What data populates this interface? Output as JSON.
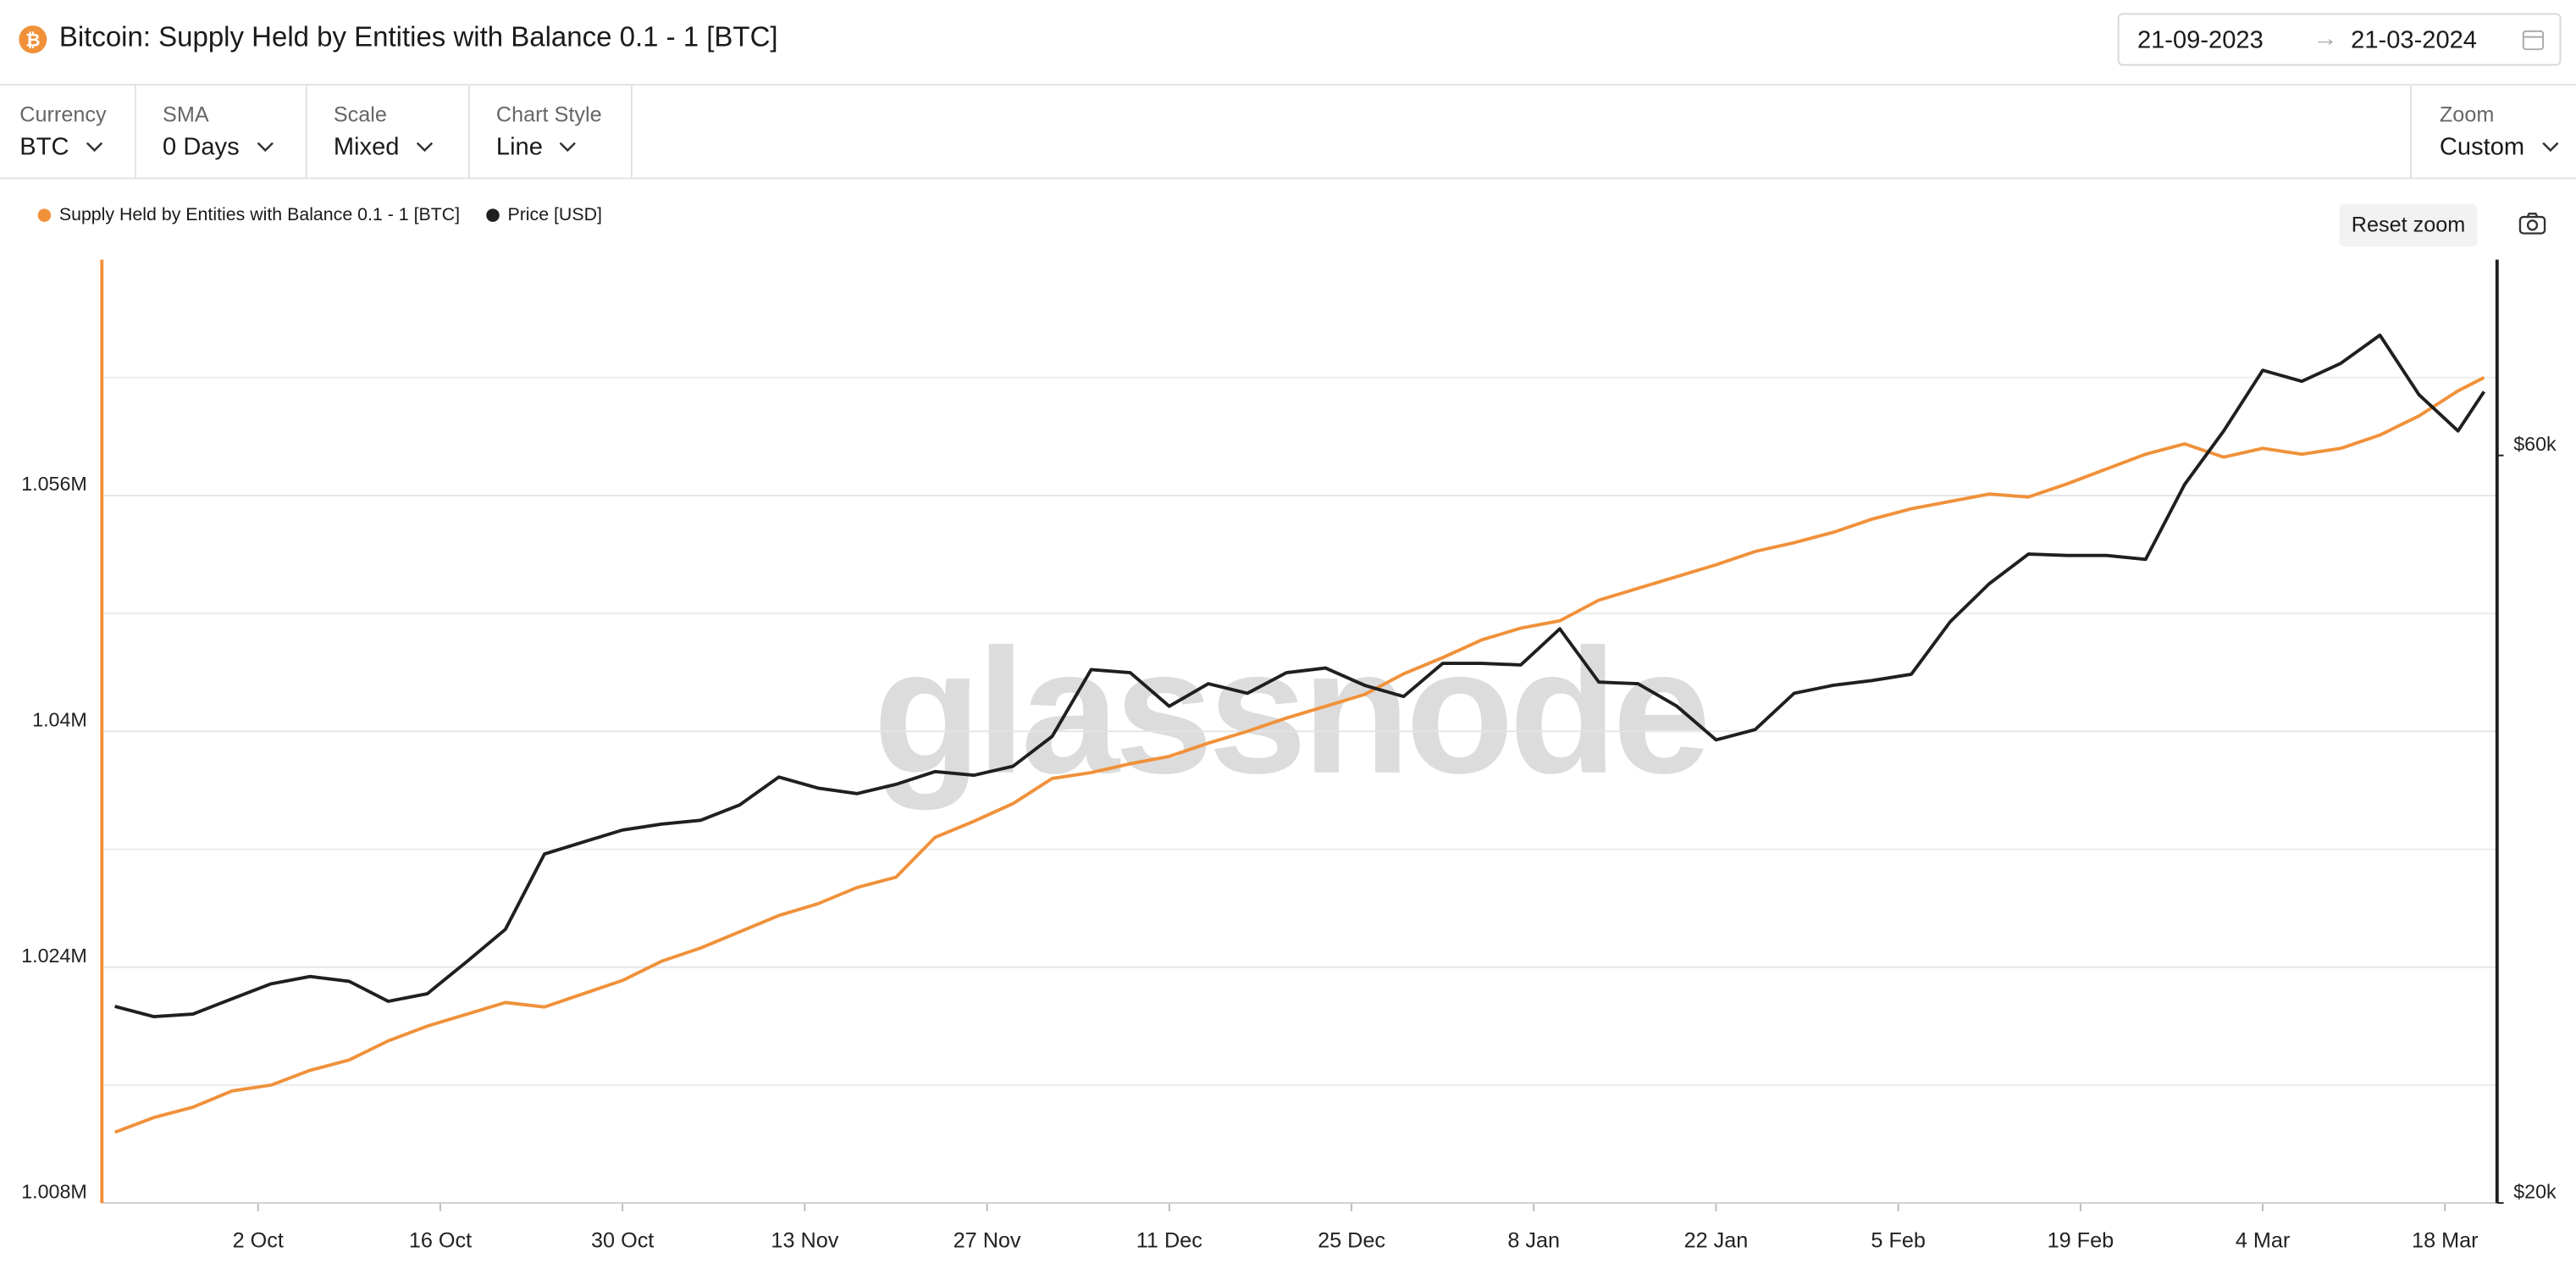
{
  "header": {
    "title": "Bitcoin: Supply Held by Entities with Balance 0.1 - 1 [BTC]",
    "date_from": "21-09-2023",
    "date_to": "21-03-2024"
  },
  "controls": [
    {
      "label": "Currency",
      "value": "BTC"
    },
    {
      "label": "SMA",
      "value": "0 Days"
    },
    {
      "label": "Scale",
      "value": "Mixed"
    },
    {
      "label": "Chart Style",
      "value": "Line"
    }
  ],
  "zoom": {
    "label": "Zoom",
    "value": "Custom"
  },
  "reset_zoom": "Reset zoom",
  "watermark": "glassnode",
  "chart_data": {
    "type": "line",
    "x": [
      "2023-09-21",
      "2023-09-24",
      "2023-09-27",
      "2023-09-30",
      "2023-10-03",
      "2023-10-06",
      "2023-10-09",
      "2023-10-12",
      "2023-10-15",
      "2023-10-18",
      "2023-10-21",
      "2023-10-24",
      "2023-10-27",
      "2023-10-30",
      "2023-11-02",
      "2023-11-05",
      "2023-11-08",
      "2023-11-11",
      "2023-11-14",
      "2023-11-17",
      "2023-11-20",
      "2023-11-23",
      "2023-11-26",
      "2023-11-29",
      "2023-12-02",
      "2023-12-05",
      "2023-12-08",
      "2023-12-11",
      "2023-12-14",
      "2023-12-17",
      "2023-12-20",
      "2023-12-23",
      "2023-12-26",
      "2023-12-29",
      "2024-01-01",
      "2024-01-04",
      "2024-01-07",
      "2024-01-10",
      "2024-01-13",
      "2024-01-16",
      "2024-01-19",
      "2024-01-22",
      "2024-01-25",
      "2024-01-28",
      "2024-01-31",
      "2024-02-03",
      "2024-02-06",
      "2024-02-09",
      "2024-02-12",
      "2024-02-15",
      "2024-02-18",
      "2024-02-21",
      "2024-02-24",
      "2024-02-27",
      "2024-03-01",
      "2024-03-04",
      "2024-03-07",
      "2024-03-10",
      "2024-03-13",
      "2024-03-16",
      "2024-03-19",
      "2024-03-21"
    ],
    "series": [
      {
        "name": "Supply Held by Entities with Balance 0.1 - 1 [BTC]",
        "color": "#f0913a",
        "axis": "y",
        "values": [
          1012800,
          1013800,
          1014500,
          1015600,
          1016000,
          1017000,
          1017700,
          1019000,
          1020000,
          1020800,
          1021600,
          1021300,
          1022200,
          1023100,
          1024400,
          1025300,
          1026400,
          1027500,
          1028300,
          1029400,
          1030100,
          1032800,
          1033900,
          1035100,
          1036800,
          1037200,
          1037800,
          1038300,
          1039200,
          1040000,
          1040900,
          1041700,
          1042500,
          1043900,
          1045000,
          1046200,
          1047000,
          1047500,
          1048900,
          1049700,
          1050500,
          1051300,
          1052200,
          1052800,
          1053500,
          1054400,
          1055100,
          1055600,
          1056100,
          1055900,
          1056800,
          1057800,
          1058800,
          1059500,
          1058600,
          1059200,
          1058800,
          1059200,
          1060100,
          1061400,
          1063100,
          1064000
        ]
      },
      {
        "name": "Price [USD]",
        "color": "#1f1f1f",
        "axis": "y2",
        "values": [
          26700,
          26300,
          26400,
          27000,
          27600,
          27900,
          27700,
          26900,
          27200,
          28500,
          29900,
          33400,
          34000,
          34600,
          34900,
          35100,
          35900,
          37400,
          36800,
          36500,
          37000,
          37700,
          37500,
          38000,
          39700,
          43800,
          43600,
          41500,
          42900,
          42300,
          43600,
          43900,
          42800,
          42100,
          44200,
          44200,
          44100,
          46500,
          43000,
          42900,
          41500,
          39500,
          40100,
          42300,
          42800,
          43100,
          43500,
          47000,
          49700,
          51900,
          51800,
          51800,
          51500,
          57500,
          62200,
          68000,
          66900,
          68700,
          71600,
          65600,
          62200,
          65900
        ]
      }
    ],
    "xlim": [
      "2023-09-20",
      "2024-03-22"
    ],
    "xticks": [
      {
        "value": "2023-10-02",
        "label": "2 Oct"
      },
      {
        "value": "2023-10-16",
        "label": "16 Oct"
      },
      {
        "value": "2023-10-30",
        "label": "30 Oct"
      },
      {
        "value": "2023-11-13",
        "label": "13 Nov"
      },
      {
        "value": "2023-11-27",
        "label": "27 Nov"
      },
      {
        "value": "2023-12-11",
        "label": "11 Dec"
      },
      {
        "value": "2023-12-25",
        "label": "25 Dec"
      },
      {
        "value": "2024-01-08",
        "label": "8 Jan"
      },
      {
        "value": "2024-01-22",
        "label": "22 Jan"
      },
      {
        "value": "2024-02-05",
        "label": "5 Feb"
      },
      {
        "value": "2024-02-19",
        "label": "19 Feb"
      },
      {
        "value": "2024-03-04",
        "label": "4 Mar"
      },
      {
        "value": "2024-03-18",
        "label": "18 Mar"
      }
    ],
    "ylim": [
      1008000,
      1072000
    ],
    "yticks": [
      {
        "value": 1008000,
        "label": "1.008M"
      },
      {
        "value": 1024000,
        "label": "1.024M"
      },
      {
        "value": 1040000,
        "label": "1.04M"
      },
      {
        "value": 1056000,
        "label": "1.056M"
      }
    ],
    "minor_yticks": [
      1016000,
      1032000,
      1048000,
      1064000
    ],
    "y2lim": [
      20000,
      80000
    ],
    "y2_log": true,
    "y2ticks": [
      {
        "value": 20000,
        "label": "$20k"
      },
      {
        "value": 60000,
        "label": "$60k"
      }
    ],
    "grid": true,
    "legend": "top-left"
  }
}
